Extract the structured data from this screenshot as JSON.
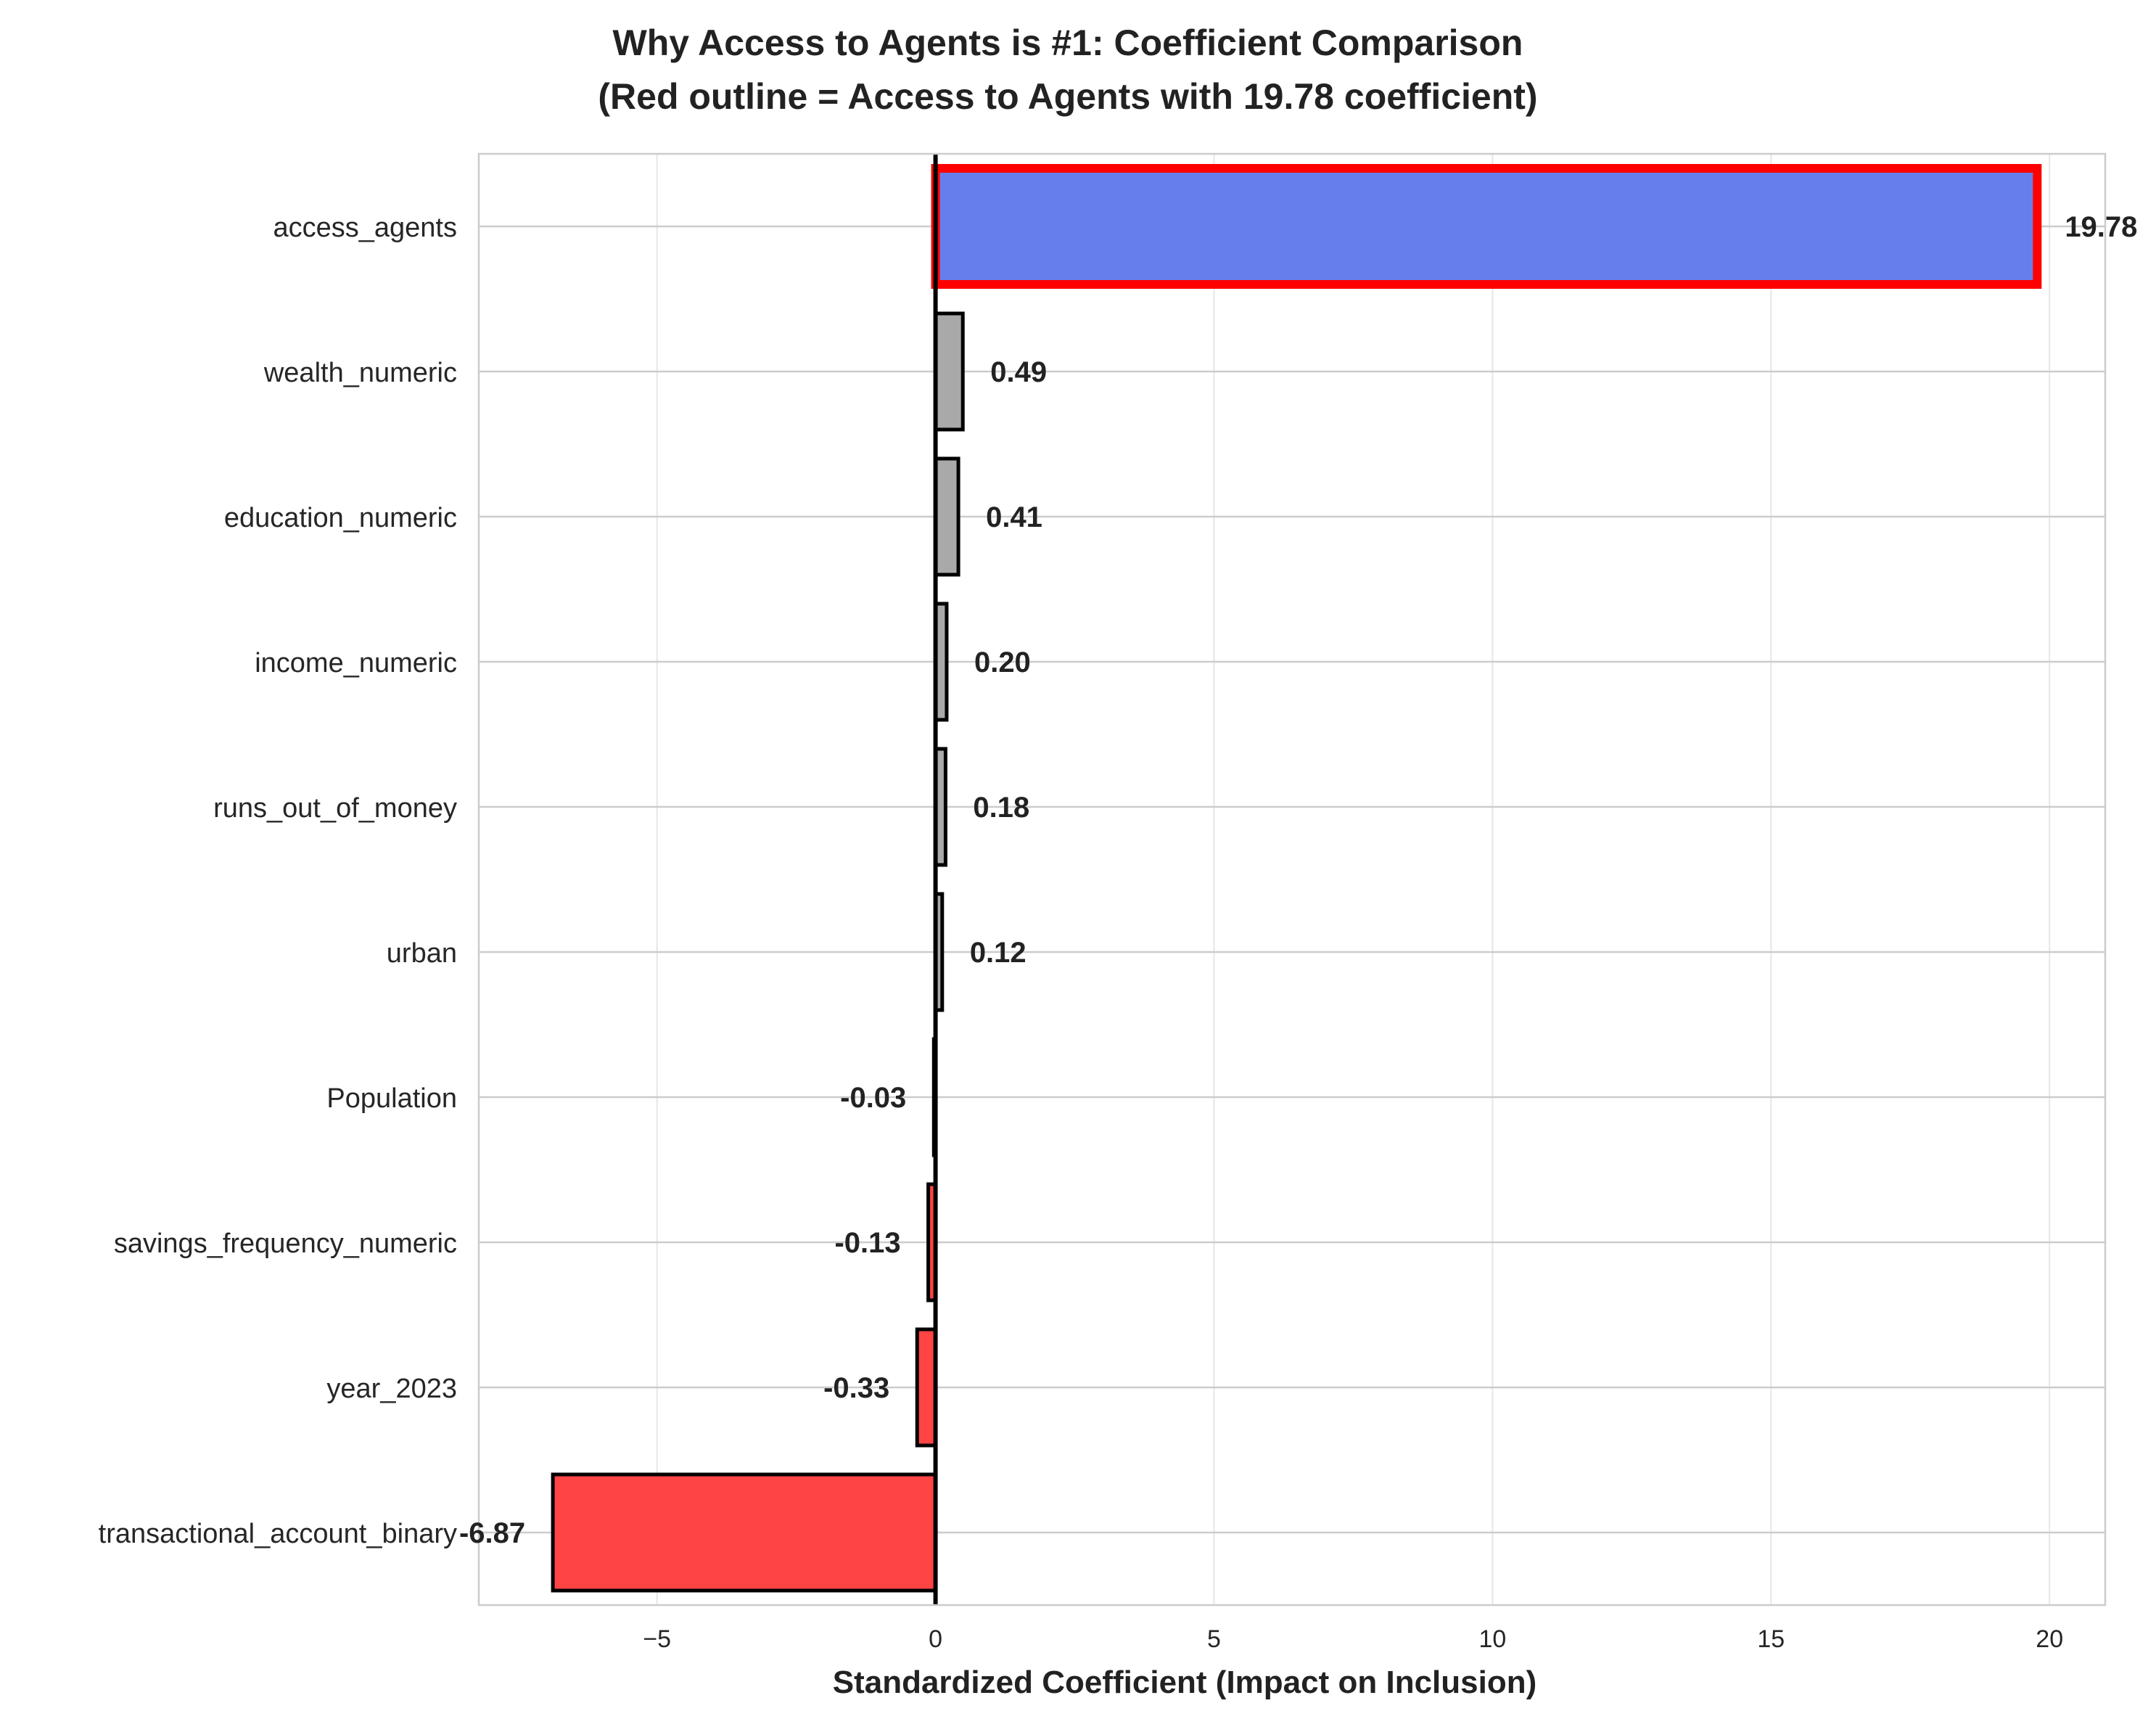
{
  "chart_data": {
    "type": "bar",
    "orientation": "horizontal",
    "title_lines": [
      "Why Access to Agents is #1: Coefficient Comparison",
      "(Red outline = Access to Agents with 19.78 coefficient)"
    ],
    "xlabel": "Standardized Coefficient (Impact on Inclusion)",
    "ylabel": "",
    "xlim": [
      -8.2,
      21.0
    ],
    "xticks": [
      {
        "value": -5,
        "label": "−5"
      },
      {
        "value": 0,
        "label": "0"
      },
      {
        "value": 5,
        "label": "5"
      },
      {
        "value": 10,
        "label": "10"
      },
      {
        "value": 15,
        "label": "15"
      },
      {
        "value": 20,
        "label": "20"
      }
    ],
    "grid": true,
    "legend": "none",
    "highlighted_category": "access_agents",
    "colors": {
      "highlight_fill": "#667eea",
      "highlight_outline": "#ff0000",
      "positive_fill": "#a9a9a9",
      "negative_fill": "#ff4444",
      "zero_line": "#000000",
      "grid": "#e6e6e6"
    },
    "bars": [
      {
        "category": "access_agents",
        "value": 19.78,
        "label": "19.78"
      },
      {
        "category": "wealth_numeric",
        "value": 0.49,
        "label": "0.49"
      },
      {
        "category": "education_numeric",
        "value": 0.41,
        "label": "0.41"
      },
      {
        "category": "income_numeric",
        "value": 0.2,
        "label": "0.20"
      },
      {
        "category": "runs_out_of_money",
        "value": 0.18,
        "label": "0.18"
      },
      {
        "category": "urban",
        "value": 0.12,
        "label": "0.12"
      },
      {
        "category": "Population",
        "value": -0.03,
        "label": "-0.03"
      },
      {
        "category": "savings_frequency_numeric",
        "value": -0.13,
        "label": "-0.13"
      },
      {
        "category": "year_2023",
        "value": -0.33,
        "label": "-0.33"
      },
      {
        "category": "transactional_account_binary",
        "value": -6.87,
        "label": "-6.87"
      }
    ]
  }
}
